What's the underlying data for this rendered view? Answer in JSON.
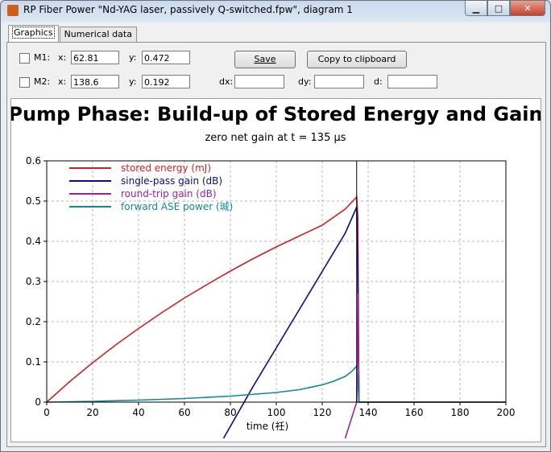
{
  "window": {
    "title": "RP Fiber Power \"Nd-YAG laser, passively Q-switched.fpw\", diagram 1",
    "min_glyph": "▁",
    "max_glyph": "□",
    "close_glyph": "✕"
  },
  "tabs": [
    {
      "label": "Graphics"
    },
    {
      "label": "Numerical data"
    }
  ],
  "markers": {
    "m1": {
      "label": "M1:",
      "x_label": "x:",
      "x_value": "62.81",
      "y_label": "y:",
      "y_value": "0.472"
    },
    "m2": {
      "label": "M2:",
      "x_label": "x:",
      "x_value": "138.6",
      "y_label": "y:",
      "y_value": "0.192"
    }
  },
  "deltas": {
    "dx_label": "dx:",
    "dy_label": "dy:",
    "d_label": "d:"
  },
  "buttons": {
    "save": "Save",
    "copy": "Copy to clipboard"
  },
  "chart_data": {
    "type": "line",
    "title": "Pump Phase: Build-up of Stored Energy and Gain",
    "subtitle": "zero net gain at t = 135 μs",
    "xlabel": "time (祍)",
    "xlim": [
      0,
      200
    ],
    "ylim": [
      0,
      0.6
    ],
    "x_ticks": [
      0,
      20,
      40,
      60,
      80,
      100,
      120,
      140,
      160,
      180,
      200
    ],
    "y_ticks": [
      0,
      0.1,
      0.2,
      0.3,
      0.4,
      0.5,
      0.6
    ],
    "grid": true,
    "legend_placement": "top-left",
    "vline_x": 135,
    "series": [
      {
        "name": "stored energy (mJ)",
        "color": "#d42020",
        "x": [
          0,
          10,
          20,
          30,
          40,
          50,
          60,
          70,
          80,
          90,
          100,
          110,
          120,
          130,
          135,
          135.5,
          136,
          138,
          140,
          160,
          180,
          200
        ],
        "y": [
          0,
          0.051,
          0.098,
          0.142,
          0.183,
          0.222,
          0.259,
          0.293,
          0.326,
          0.357,
          0.386,
          0.413,
          0.44,
          0.48,
          0.51,
          0.46,
          0,
          0,
          0,
          0,
          0,
          0
        ]
      },
      {
        "name": "single-pass gain (dB)",
        "color": "#0a0a90",
        "x": [
          77,
          90,
          100,
          110,
          120,
          130,
          135,
          135.5,
          136,
          140,
          160,
          180,
          200
        ],
        "y": [
          -0.09,
          0.04,
          0.135,
          0.23,
          0.325,
          0.42,
          0.485,
          0.3,
          0,
          0,
          0,
          0,
          0
        ]
      },
      {
        "name": "round-trip gain (dB)",
        "color": "#a020a0",
        "x": [
          130,
          135,
          135.5,
          136,
          140,
          160,
          180,
          200
        ],
        "y": [
          -0.09,
          0,
          0.27,
          0,
          0,
          0,
          0,
          0
        ]
      },
      {
        "name": "forward ASE power (瑊)",
        "color": "#108a8a",
        "x": [
          0,
          20,
          40,
          60,
          80,
          100,
          110,
          120,
          125,
          130,
          133,
          135,
          135.5,
          136,
          140,
          160,
          180,
          200
        ],
        "y": [
          0,
          0.002,
          0.005,
          0.009,
          0.015,
          0.024,
          0.031,
          0.043,
          0.052,
          0.064,
          0.077,
          0.09,
          0.05,
          0,
          0,
          0,
          0,
          0
        ]
      }
    ]
  }
}
